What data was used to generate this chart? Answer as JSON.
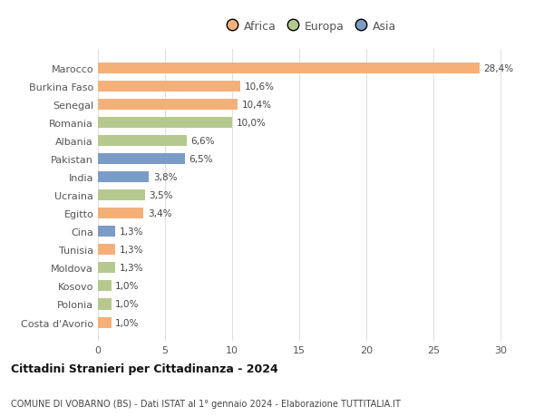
{
  "countries": [
    "Marocco",
    "Burkina Faso",
    "Senegal",
    "Romania",
    "Albania",
    "Pakistan",
    "India",
    "Ucraina",
    "Egitto",
    "Cina",
    "Tunisia",
    "Moldova",
    "Kosovo",
    "Polonia",
    "Costa d'Avorio"
  ],
  "values": [
    28.4,
    10.6,
    10.4,
    10.0,
    6.6,
    6.5,
    3.8,
    3.5,
    3.4,
    1.3,
    1.3,
    1.3,
    1.0,
    1.0,
    1.0
  ],
  "labels": [
    "28,4%",
    "10,6%",
    "10,4%",
    "10,0%",
    "6,6%",
    "6,5%",
    "3,8%",
    "3,5%",
    "3,4%",
    "1,3%",
    "1,3%",
    "1,3%",
    "1,0%",
    "1,0%",
    "1,0%"
  ],
  "continents": [
    "Africa",
    "Africa",
    "Africa",
    "Europa",
    "Europa",
    "Asia",
    "Asia",
    "Europa",
    "Africa",
    "Asia",
    "Africa",
    "Europa",
    "Europa",
    "Europa",
    "Africa"
  ],
  "colors": {
    "Africa": "#F5B07A",
    "Europa": "#B5C98E",
    "Asia": "#7B9CC7"
  },
  "title": "Cittadini Stranieri per Cittadinanza - 2024",
  "subtitle": "COMUNE DI VOBARNO (BS) - Dati ISTAT al 1° gennaio 2024 - Elaborazione TUTTITALIA.IT",
  "xlim": [
    0,
    32
  ],
  "xticks": [
    0,
    5,
    10,
    15,
    20,
    25,
    30
  ],
  "background_color": "#ffffff",
  "grid_color": "#e0e0e0",
  "legend_labels": [
    "Africa",
    "Europa",
    "Asia"
  ],
  "legend_colors": [
    "#F5B07A",
    "#B5C98E",
    "#7B9CC7"
  ]
}
